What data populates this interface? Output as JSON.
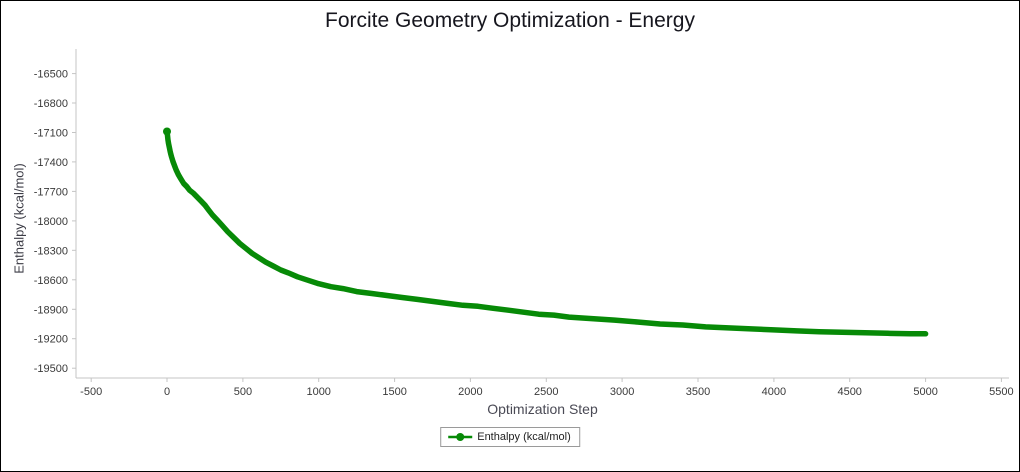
{
  "chart_data": {
    "type": "line",
    "title": "Forcite Geometry Optimization - Energy",
    "xlabel": "Optimization Step",
    "ylabel": "Enthalpy (kcal/mol)",
    "legend": [
      "Enthalpy (kcal/mol)"
    ],
    "grid": false,
    "legend_position": "bottom-center",
    "line_color": "#078a07",
    "xlim": [
      -600,
      5550
    ],
    "ylim": [
      -19600,
      -16250
    ],
    "x_ticks": [
      -500,
      0,
      500,
      1000,
      1500,
      2000,
      2500,
      3000,
      3500,
      4000,
      4500,
      5000,
      5500
    ],
    "y_ticks": [
      -16500,
      -16800,
      -17100,
      -17400,
      -17700,
      -18000,
      -18300,
      -18600,
      -18900,
      -19200,
      -19500
    ],
    "series": [
      {
        "name": "Enthalpy (kcal/mol)",
        "color": "#078a07",
        "x": [
          0,
          3,
          6,
          10,
          15,
          20,
          25,
          30,
          40,
          50,
          60,
          75,
          90,
          110,
          130,
          150,
          175,
          200,
          225,
          250,
          275,
          300,
          330,
          360,
          400,
          440,
          480,
          520,
          560,
          600,
          650,
          700,
          750,
          800,
          860,
          920,
          1000,
          1080,
          1160,
          1250,
          1350,
          1450,
          1550,
          1650,
          1750,
          1850,
          1950,
          2050,
          2150,
          2250,
          2350,
          2450,
          2550,
          2650,
          2750,
          2850,
          2950,
          3100,
          3250,
          3400,
          3550,
          3700,
          3850,
          4000,
          4150,
          4300,
          4450,
          4600,
          4750,
          4900,
          5000
        ],
        "y": [
          -17090,
          -17130,
          -17170,
          -17210,
          -17250,
          -17290,
          -17320,
          -17350,
          -17400,
          -17440,
          -17480,
          -17530,
          -17570,
          -17620,
          -17650,
          -17690,
          -17720,
          -17760,
          -17800,
          -17840,
          -17890,
          -17940,
          -17990,
          -18040,
          -18110,
          -18170,
          -18230,
          -18280,
          -18330,
          -18370,
          -18420,
          -18460,
          -18500,
          -18530,
          -18570,
          -18600,
          -18640,
          -18670,
          -18690,
          -18720,
          -18740,
          -18760,
          -18780,
          -18800,
          -18820,
          -18840,
          -18860,
          -18870,
          -18890,
          -18910,
          -18930,
          -18950,
          -18960,
          -18980,
          -18990,
          -19000,
          -19010,
          -19030,
          -19050,
          -19060,
          -19080,
          -19090,
          -19100,
          -19110,
          -19120,
          -19130,
          -19135,
          -19140,
          -19145,
          -19150,
          -19150
        ]
      }
    ]
  }
}
